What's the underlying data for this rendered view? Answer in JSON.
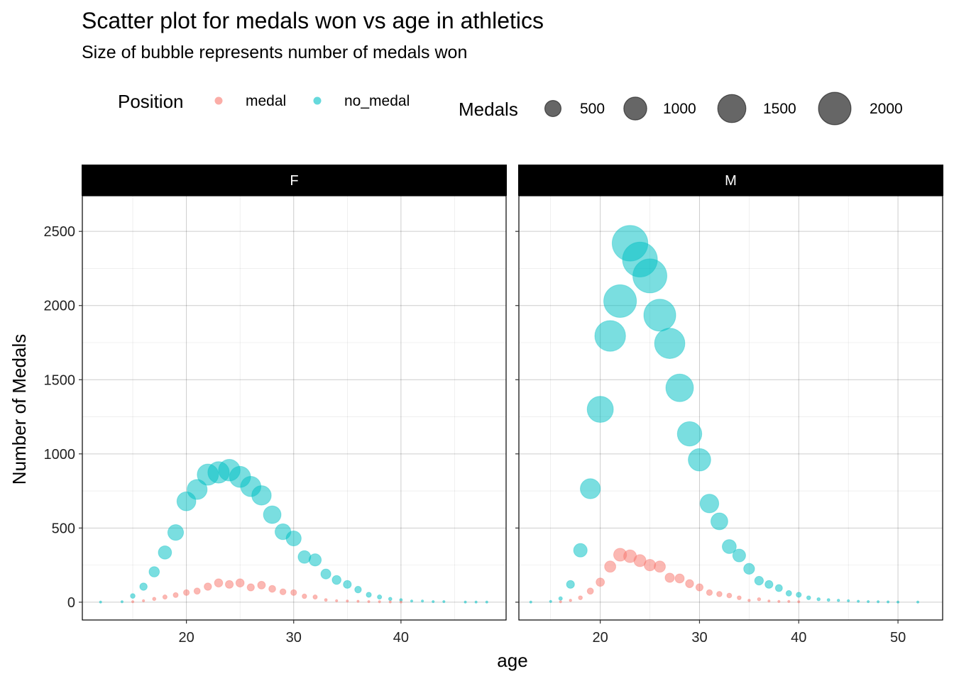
{
  "chart_data": {
    "type": "scatter",
    "title": "Scatter plot for medals won vs age in athletics",
    "subtitle": "Size of bubble represents number of medals won",
    "xlabel": "age",
    "ylabel": "Number of Medals",
    "ylim": [
      -120,
      2740
    ],
    "y_ticks": [
      0,
      500,
      1000,
      1500,
      2000,
      2500
    ],
    "grid": true,
    "legend_position": "top",
    "colors": {
      "medal": "#F8766D",
      "no_medal": "#00BFC4",
      "size_key": "#000000"
    },
    "color_legend": {
      "title": "Position",
      "entries": [
        "medal",
        "no_medal"
      ]
    },
    "size_legend": {
      "title": "Medals",
      "entries": [
        500,
        1000,
        1500,
        2000
      ]
    },
    "panels": [
      {
        "name": "F",
        "xlim": [
          10.3,
          49.8
        ],
        "x_ticks": [
          20,
          30,
          40
        ],
        "series": [
          {
            "name": "medal",
            "x": [
              15,
              16,
              17,
              18,
              19,
              20,
              21,
              22,
              23,
              24,
              25,
              26,
              27,
              28,
              29,
              30,
              31,
              32,
              33,
              34,
              35,
              36,
              37,
              38,
              39,
              40
            ],
            "y": [
              3,
              10,
              22,
              35,
              48,
              65,
              75,
              105,
              130,
              120,
              130,
              100,
              115,
              90,
              70,
              65,
              40,
              35,
              15,
              10,
              8,
              6,
              4,
              3,
              2,
              1
            ]
          },
          {
            "name": "no_medal",
            "x": [
              12,
              14,
              15,
              16,
              17,
              18,
              19,
              20,
              21,
              22,
              23,
              24,
              25,
              26,
              27,
              28,
              29,
              30,
              31,
              32,
              33,
              34,
              35,
              36,
              37,
              38,
              39,
              40,
              41,
              42,
              43,
              44,
              46,
              47,
              48
            ],
            "y": [
              1,
              3,
              42,
              105,
              205,
              335,
              470,
              680,
              760,
              860,
              875,
              890,
              845,
              780,
              720,
              590,
              475,
              430,
              305,
              285,
              190,
              150,
              120,
              85,
              50,
              35,
              22,
              15,
              8,
              8,
              4,
              4,
              1,
              1,
              1
            ]
          }
        ]
      },
      {
        "name": "M",
        "xlim": [
          11.8,
          54.5
        ],
        "x_ticks": [
          20,
          30,
          40,
          50
        ],
        "series": [
          {
            "name": "medal",
            "x": [
              16,
              17,
              18,
              19,
              20,
              21,
              22,
              23,
              24,
              25,
              26,
              27,
              28,
              29,
              30,
              31,
              32,
              33,
              34,
              35,
              36,
              37,
              38,
              39,
              40
            ],
            "y": [
              3,
              12,
              30,
              75,
              135,
              240,
              320,
              310,
              280,
              250,
              240,
              165,
              160,
              125,
              100,
              65,
              55,
              45,
              30,
              12,
              20,
              8,
              5,
              5,
              3
            ]
          },
          {
            "name": "no_medal",
            "x": [
              13,
              15,
              16,
              17,
              18,
              19,
              20,
              21,
              22,
              23,
              24,
              25,
              26,
              27,
              28,
              29,
              30,
              31,
              32,
              33,
              34,
              35,
              36,
              37,
              38,
              39,
              40,
              41,
              42,
              43,
              44,
              45,
              46,
              47,
              48,
              49,
              50,
              52
            ],
            "y": [
              1,
              5,
              25,
              120,
              350,
              765,
              1300,
              1795,
              2030,
              2420,
              2310,
              2200,
              1935,
              1745,
              1445,
              1135,
              960,
              665,
              545,
              375,
              315,
              225,
              145,
              120,
              95,
              60,
              50,
              30,
              20,
              15,
              12,
              10,
              6,
              4,
              3,
              2,
              1,
              1
            ]
          }
        ]
      }
    ]
  }
}
